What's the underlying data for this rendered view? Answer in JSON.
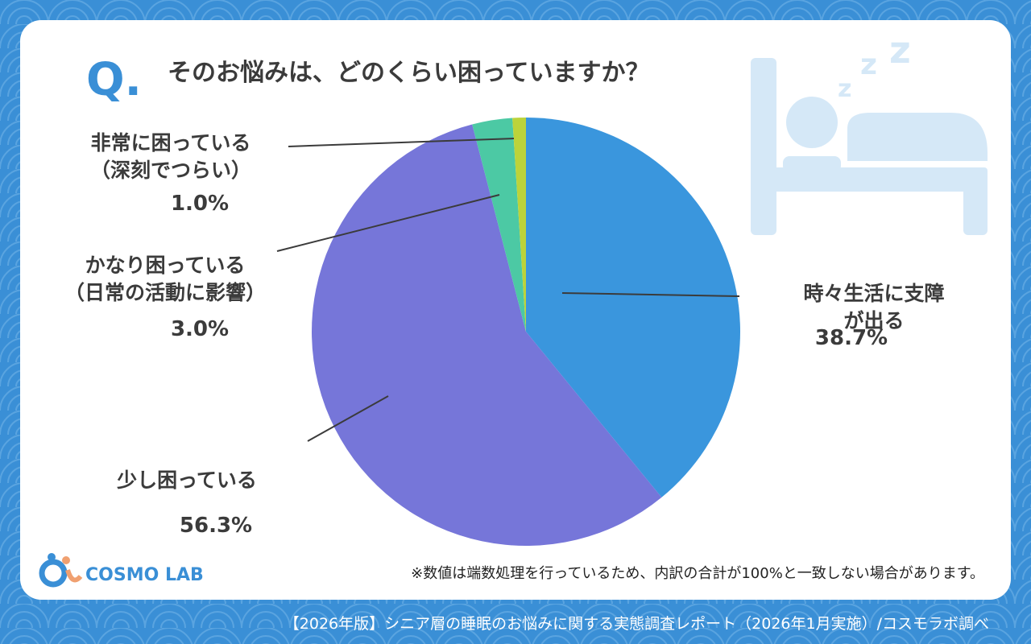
{
  "chart_data": {
    "type": "pie",
    "question_mark": "Q.",
    "title": "そのお悩みは、どのくらい困っていますか？",
    "categories": [
      "時々生活に支障が出る",
      "少し困っている",
      "かなり困っている\n（日常の活動に影響）",
      "非常に困っている\n（深刻でつらい）"
    ],
    "values": [
      38.7,
      56.3,
      3.0,
      1.0
    ],
    "value_labels": [
      "38.7%",
      "56.3%",
      "3.0%",
      "1.0%"
    ],
    "colors": [
      "#3a96dd",
      "#7676d9",
      "#4cc9a4",
      "#bcd33a"
    ],
    "note": "※数値は端数処理を行っているため、内訳の合計が100%と一致しない場合があります。",
    "logo": "COSMO LAB",
    "footer": "【2026年版】シニア層の睡眠のお悩みに関する実態調査レポート（2026年1月実施）/コスモラボ調べ"
  }
}
